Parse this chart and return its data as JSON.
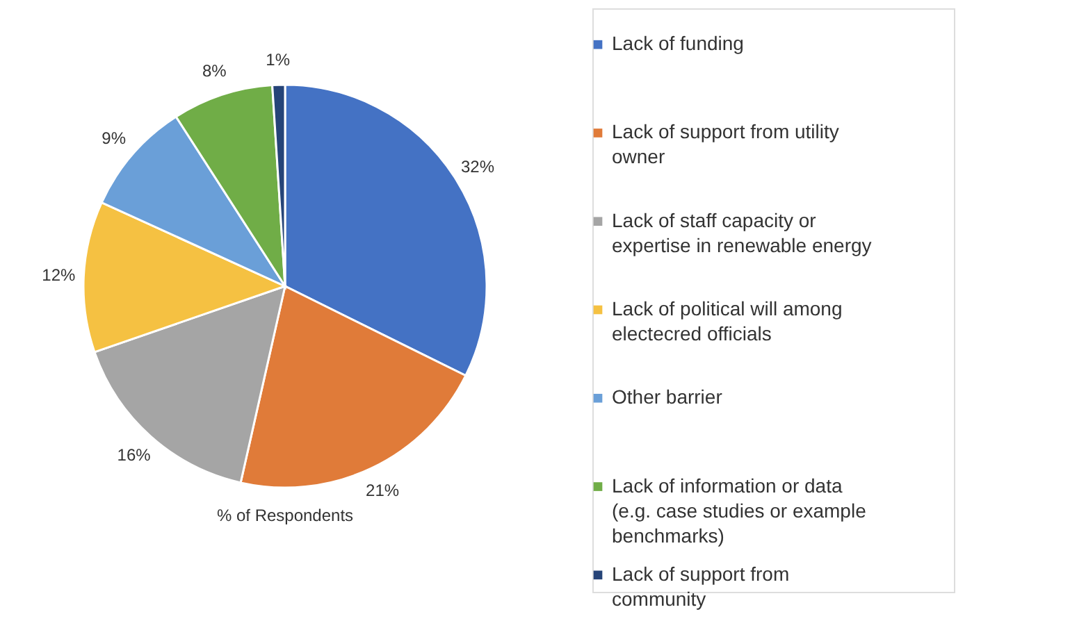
{
  "chart_data": {
    "type": "pie",
    "title": "% of Respondents",
    "categories": [
      "Lack of funding",
      "Lack of support from utility owner",
      "Lack of staff capacity or expertise in renewable energy",
      "Lack of political will among electecred officials",
      "Other barrier",
      "Lack of information or data (e.g. case studies or example benchmarks)",
      "Lack of support from community"
    ],
    "values": [
      32,
      21,
      16,
      12,
      9,
      8,
      1
    ],
    "value_labels": [
      "32%",
      "21%",
      "16%",
      "12%",
      "9%",
      "8%",
      "1%"
    ],
    "colors": [
      "#4472c4",
      "#e07b39",
      "#a5a5a5",
      "#f5c142",
      "#6a9fd8",
      "#70ad47",
      "#264478"
    ],
    "legend": "right"
  }
}
